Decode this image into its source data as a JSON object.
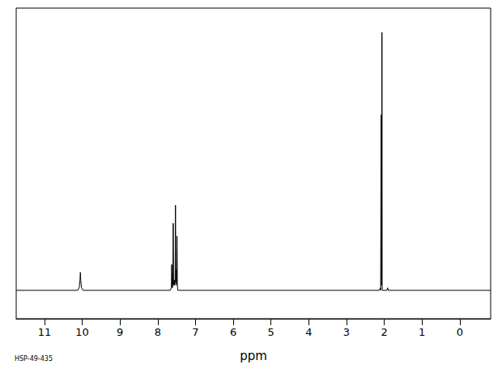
{
  "chart_data": {
    "type": "line",
    "x_label": "ppm",
    "annotation": "HSP-49-435",
    "x": [
      11.75,
      10.12,
      10.08,
      10.06,
      10.05,
      10.04,
      10.02,
      9.98,
      7.67,
      7.64,
      7.63,
      7.62,
      7.61,
      7.6,
      7.59,
      7.58,
      7.56,
      7.55,
      7.54,
      7.53,
      7.52,
      7.51,
      7.5,
      7.49,
      7.48,
      7.47,
      7.44,
      2.13,
      2.1,
      2.095,
      2.085,
      2.08,
      2.075,
      2.07,
      2.065,
      2.06,
      2.055,
      2.05,
      1.93,
      1.91,
      1.89,
      -0.82
    ],
    "values": [
      0,
      0,
      1,
      4,
      7,
      4,
      1,
      0,
      0,
      1,
      10,
      2,
      1,
      2,
      26,
      2,
      4,
      2,
      3,
      33,
      3,
      8,
      2,
      21,
      2,
      0,
      0,
      0,
      1,
      0,
      0,
      68,
      2,
      3,
      2,
      100,
      2,
      0,
      0,
      1,
      0,
      0
    ],
    "color": "#000000",
    "xlim": [
      11.75,
      -0.82
    ],
    "xticks": [
      0,
      1,
      2,
      3,
      4,
      5,
      6,
      7,
      8,
      9,
      10,
      11
    ],
    "ylim": [
      -11,
      109.4
    ],
    "yticks": [],
    "tick_labels": "x",
    "grid": false
  }
}
